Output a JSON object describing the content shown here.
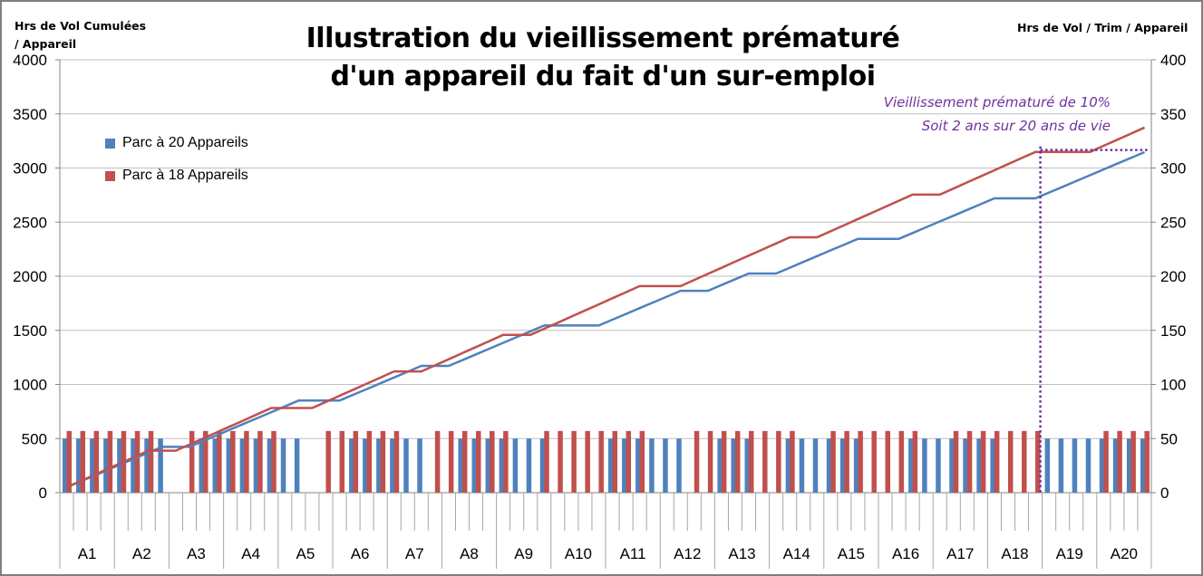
{
  "chart_data": {
    "type": "bar+line",
    "title_line1": "Illustration du vieillissement prématuré",
    "title_line2": "d'un appareil du fait d'un sur-emploi",
    "ylabel_left_line1": "Hrs de Vol Cumulées",
    "ylabel_left_line2": "/ Appareil",
    "ylabel_right": "Hrs de Vol / Trim / Appareil",
    "annotation_line1": "Vieillissement prématuré de 10%",
    "annotation_line2": "Soit 2 ans sur 20 ans de vie",
    "left_axis": {
      "min": 0,
      "max": 4000,
      "ticks": [
        0,
        500,
        1000,
        1500,
        2000,
        2500,
        3000,
        3500,
        4000
      ]
    },
    "right_axis": {
      "min": 0,
      "max": 400,
      "ticks": [
        0,
        50,
        100,
        150,
        200,
        250,
        300,
        350,
        400
      ]
    },
    "categories": [
      "A1",
      "A2",
      "A3",
      "A4",
      "A5",
      "A6",
      "A7",
      "A8",
      "A9",
      "A10",
      "A11",
      "A12",
      "A13",
      "A14",
      "A15",
      "A16",
      "A17",
      "A18",
      "A19",
      "A20"
    ],
    "quarters_per_category": 4,
    "series": [
      {
        "name": "Parc à 20 Appareils",
        "color": "#4f81bd",
        "bar_value": 50,
        "line_end": 3200
      },
      {
        "name": "Parc à 18 Appareils",
        "color": "#c0504d",
        "bar_value": 57,
        "line_end": 3430
      }
    ],
    "quarter_activity": [
      "BR",
      "BR",
      "BR",
      "BR",
      "BR",
      "BR",
      "BR",
      "B",
      "",
      "R",
      "BR",
      "BR",
      "BR",
      "BR",
      "BR",
      "BR",
      "B",
      "B",
      "",
      "R",
      "R",
      "BR",
      "BR",
      "BR",
      "BR",
      "B",
      "B",
      "R",
      "R",
      "BR",
      "BR",
      "BR",
      "BR",
      "B",
      "B",
      "BR",
      "R",
      "R",
      "R",
      "R",
      "BR",
      "BR",
      "BR",
      "B",
      "B",
      "B",
      "R",
      "R",
      "BR",
      "BR",
      "BR",
      "R",
      "R",
      "BR",
      "B",
      "B",
      "BR",
      "BR",
      "BR",
      "R",
      "R",
      "R",
      "BR",
      "B",
      "B",
      "BR",
      "BR",
      "BR",
      "BR",
      "R",
      "R",
      "R",
      "B",
      "B",
      "B",
      "B",
      "BR",
      "BR",
      "BR",
      "BR"
    ],
    "marker": {
      "x_category": "A19",
      "y_value": 3200,
      "color": "#7030a0",
      "style": "dotted"
    },
    "grid": "horizontal",
    "legend_position": "upper-left"
  }
}
